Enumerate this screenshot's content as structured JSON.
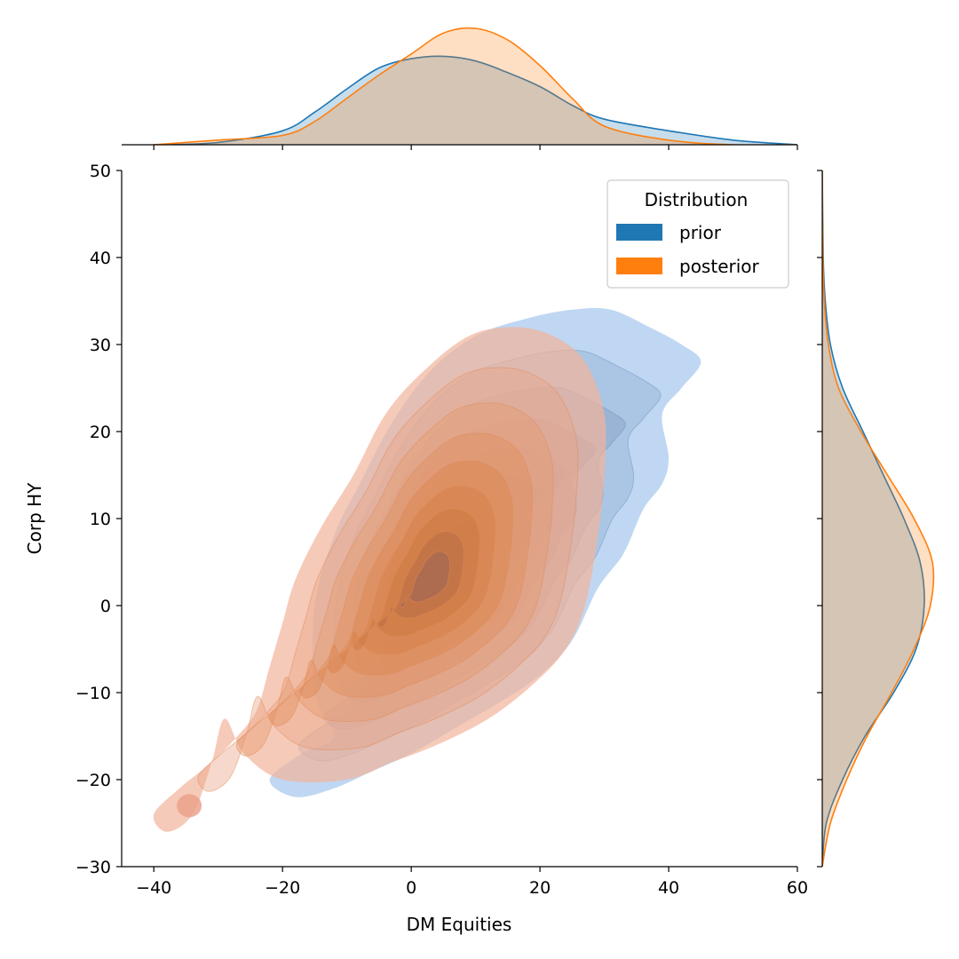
{
  "chart_data": {
    "type": "kde-joint",
    "xlabel": "DM Equities",
    "ylabel": "Corp HY",
    "xlim": [
      -45,
      60
    ],
    "ylim": [
      -30,
      50
    ],
    "xticks": [
      -40,
      -20,
      0,
      20,
      40,
      60
    ],
    "xtick_labels": [
      "−40",
      "−20",
      "0",
      "20",
      "40",
      "60"
    ],
    "yticks": [
      -30,
      -20,
      -10,
      0,
      10,
      20,
      30,
      40,
      50
    ],
    "ytick_labels": [
      "−30",
      "−20",
      "−10",
      "0",
      "10",
      "20",
      "30",
      "40",
      "50"
    ],
    "legend": {
      "title": "Distribution",
      "placement": "top-right",
      "entries": [
        {
          "label": "prior",
          "color": "#1f77b4"
        },
        {
          "label": "posterior",
          "color": "#ff7f0e"
        }
      ]
    },
    "series": [
      {
        "name": "prior",
        "color": "#1f77b4",
        "bivariate_center": [
          6,
          4
        ],
        "outer_contour": [
          [
            -12,
            -15
          ],
          [
            -15,
            -10
          ],
          [
            -15,
            0
          ],
          [
            -12,
            8
          ],
          [
            -8,
            14
          ],
          [
            -3,
            21
          ],
          [
            3,
            27
          ],
          [
            10,
            31
          ],
          [
            18,
            33
          ],
          [
            25,
            34
          ],
          [
            31,
            34
          ],
          [
            37,
            32
          ],
          [
            42,
            30
          ],
          [
            45,
            28
          ],
          [
            42,
            25
          ],
          [
            39,
            22
          ],
          [
            40,
            17
          ],
          [
            39,
            14
          ],
          [
            36,
            11
          ],
          [
            33,
            6
          ],
          [
            29,
            2
          ],
          [
            25,
            -4
          ],
          [
            20,
            -8
          ],
          [
            14,
            -11
          ],
          [
            7,
            -14
          ],
          [
            0,
            -17
          ],
          [
            -6,
            -19
          ],
          [
            -12,
            -21
          ],
          [
            -18,
            -22
          ],
          [
            -22,
            -20
          ],
          [
            -17,
            -17
          ]
        ],
        "x_marginal": {
          "x": [
            -40,
            -30,
            -20,
            -15,
            -10,
            -5,
            0,
            5,
            10,
            15,
            20,
            25,
            30,
            40,
            50,
            60
          ],
          "density": [
            0.0,
            0.001,
            0.006,
            0.014,
            0.024,
            0.033,
            0.037,
            0.038,
            0.036,
            0.031,
            0.025,
            0.017,
            0.011,
            0.006,
            0.002,
            0.0
          ]
        },
        "y_marginal": {
          "y": [
            -30,
            -25,
            -20,
            -15,
            -10,
            -5,
            0,
            5,
            10,
            15,
            20,
            25,
            30,
            35,
            40,
            50
          ],
          "density": [
            0.0,
            0.002,
            0.01,
            0.021,
            0.035,
            0.046,
            0.05,
            0.048,
            0.04,
            0.03,
            0.02,
            0.01,
            0.004,
            0.0015,
            0.0005,
            0.0
          ]
        }
      },
      {
        "name": "posterior",
        "color": "#ff7f0e",
        "bivariate_center": [
          3,
          3
        ],
        "outer_contour": [
          [
            -38,
            -26
          ],
          [
            -40,
            -24
          ],
          [
            -36,
            -21
          ],
          [
            -31,
            -18
          ],
          [
            -27,
            -15
          ],
          [
            -24,
            -12
          ],
          [
            -22,
            -7
          ],
          [
            -20,
            -2
          ],
          [
            -18,
            3
          ],
          [
            -14,
            9
          ],
          [
            -9,
            15
          ],
          [
            -4,
            22
          ],
          [
            2,
            27
          ],
          [
            9,
            31
          ],
          [
            16,
            32
          ],
          [
            22,
            31
          ],
          [
            27,
            28
          ],
          [
            30,
            22
          ],
          [
            30,
            15
          ],
          [
            29,
            8
          ],
          [
            27,
            0
          ],
          [
            24,
            -5
          ],
          [
            19,
            -9
          ],
          [
            12,
            -13
          ],
          [
            4,
            -16
          ],
          [
            -3,
            -18
          ],
          [
            -10,
            -20
          ],
          [
            -20,
            -20
          ],
          [
            -26,
            -17
          ],
          [
            -29,
            -13
          ],
          [
            -31,
            -18
          ],
          [
            -34,
            -24
          ]
        ],
        "x_marginal": {
          "x": [
            -40,
            -30,
            -20,
            -15,
            -10,
            -5,
            0,
            5,
            10,
            15,
            20,
            25,
            30,
            40,
            50,
            60
          ],
          "density": [
            0.0,
            0.002,
            0.004,
            0.01,
            0.02,
            0.03,
            0.039,
            0.048,
            0.05,
            0.045,
            0.034,
            0.02,
            0.008,
            0.002,
            0.0,
            0.0
          ]
        },
        "y_marginal": {
          "y": [
            -30,
            -25,
            -20,
            -15,
            -10,
            -5,
            0,
            5,
            10,
            15,
            20,
            25,
            30,
            35,
            40,
            50
          ],
          "density": [
            0.0,
            0.004,
            0.012,
            0.022,
            0.034,
            0.045,
            0.053,
            0.054,
            0.045,
            0.032,
            0.019,
            0.008,
            0.003,
            0.001,
            0.0003,
            0.0
          ]
        }
      }
    ]
  }
}
